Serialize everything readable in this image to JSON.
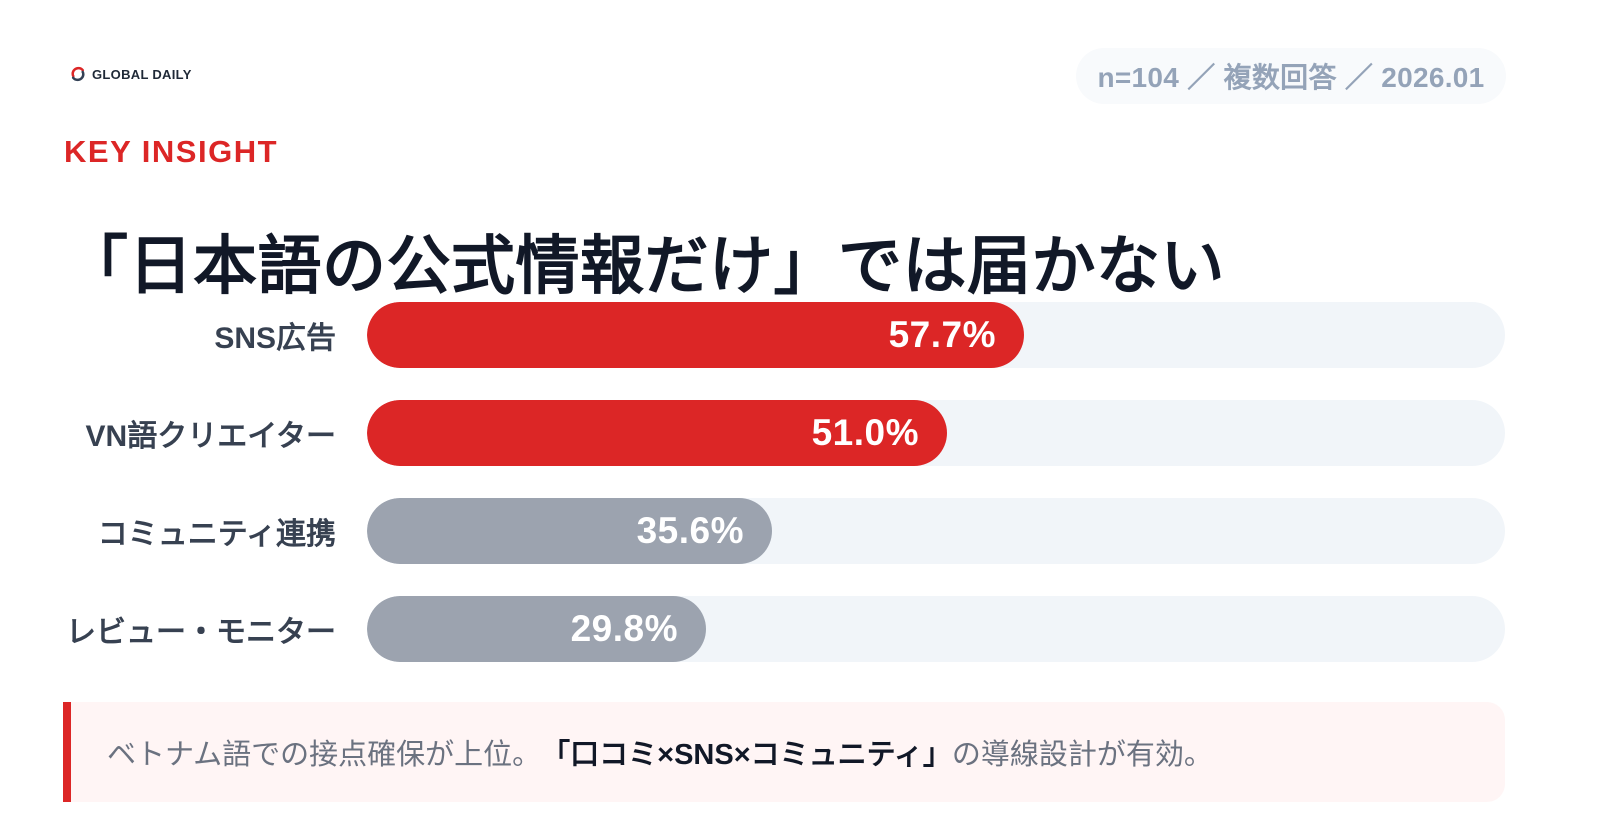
{
  "brand": {
    "name": "GLOBAL DAILY",
    "icon": "global-daily-logo-icon"
  },
  "meta": {
    "sample": "n=104",
    "answer_type": "複数回答",
    "date": "2026.01",
    "separator": "／",
    "text": "n=104 ／ 複数回答 ／ 2026.01"
  },
  "kicker": "KEY INSIGHT",
  "headline": "「日本語の公式情報だけ」では届かない",
  "chart_data": {
    "type": "bar",
    "orientation": "horizontal",
    "title": "",
    "xlabel": "",
    "ylabel": "",
    "xlim": [
      0,
      100
    ],
    "categories": [
      "SNS広告",
      "VN語クリエイター",
      "コミュニティ連携",
      "レビュー・モニター"
    ],
    "values": [
      57.7,
      51.0,
      35.6,
      29.8
    ],
    "value_labels": [
      "57.7%",
      "51.0%",
      "35.6%",
      "29.8%"
    ],
    "grid": false,
    "legend": "none",
    "highlight_count": 2,
    "colors": {
      "highlight": "#dc2626",
      "muted": "#9ca3af",
      "track": "#f1f5f9",
      "label": "#374151",
      "value_text": "#ffffff"
    }
  },
  "callout": {
    "prefix": "ベトナム語での接点確保が上位。",
    "emphasis": "「口コミ×SNS×コミュニティ」",
    "suffix": "の導線設計が有効。"
  },
  "colors": {
    "accent": "#dc2626",
    "heading": "#111827",
    "muted_text": "#94a3b8",
    "callout_bg": "#fff5f5"
  }
}
